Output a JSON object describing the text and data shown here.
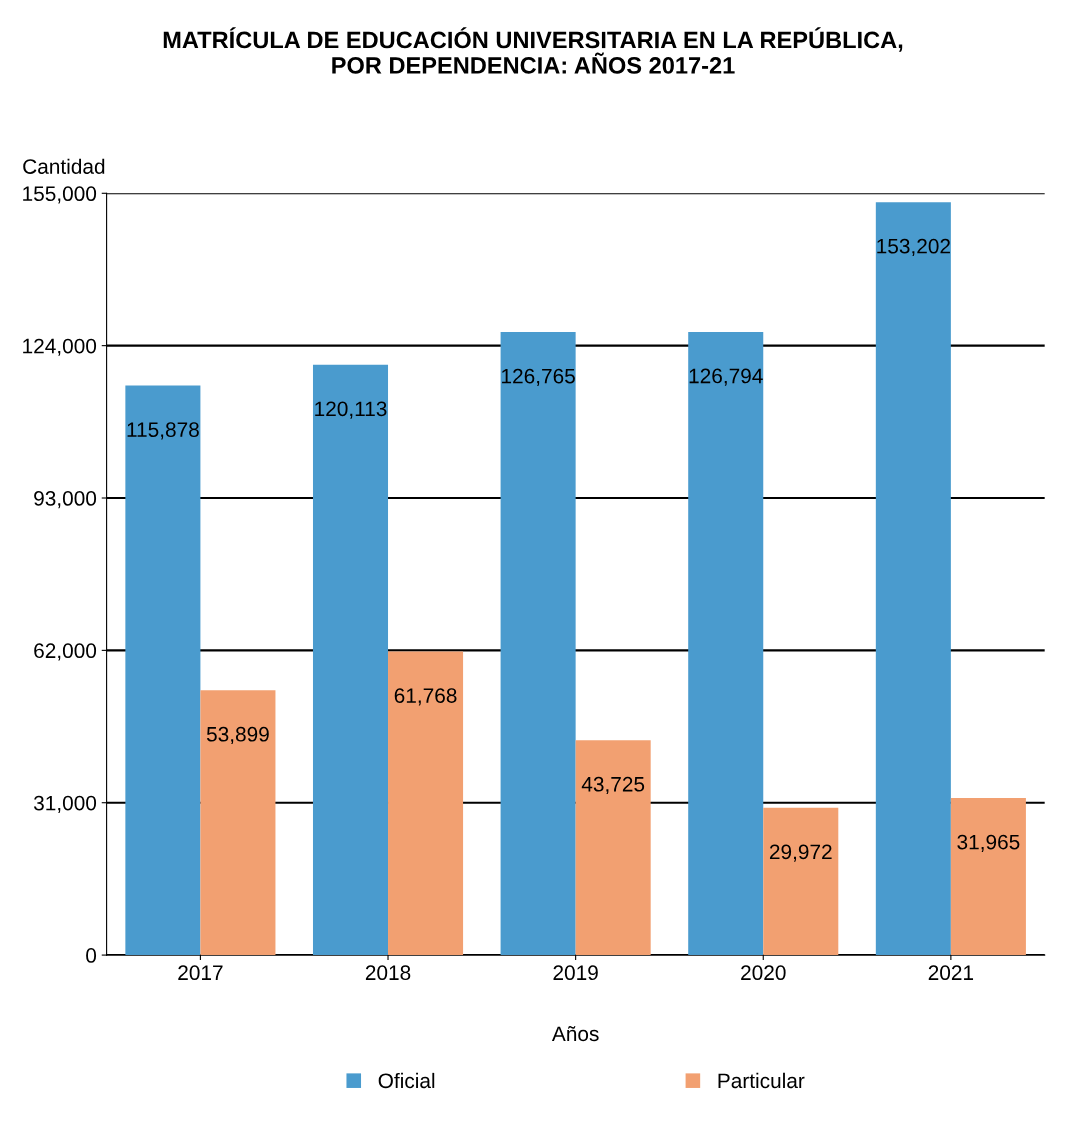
{
  "chart_data": {
    "type": "bar",
    "title": "MATRÍCULA DE EDUCACIÓN UNIVERSITARIA EN LA REPÚBLICA,\nPOR DEPENDENCIA: AÑOS 2017-21",
    "xlabel": "Años",
    "ylabel": "Cantidad",
    "categories": [
      "2017",
      "2018",
      "2019",
      "2020",
      "2021"
    ],
    "series": [
      {
        "name": "Oficial",
        "color": "#4a9bce",
        "values": [
          115878,
          120113,
          126765,
          126794,
          153202
        ],
        "value_labels": [
          "115,878",
          "120,113",
          "126,765",
          "126,794",
          "153,202"
        ]
      },
      {
        "name": "Particular",
        "color": "#f2a071",
        "values": [
          53899,
          61768,
          43725,
          29972,
          31965
        ],
        "value_labels": [
          "53,899",
          "61,768",
          "43,725",
          "29,972",
          "31,965"
        ]
      }
    ],
    "ylim": [
      0,
      155000
    ],
    "yticks": [
      {
        "value": 0,
        "label": "0"
      },
      {
        "value": 31000,
        "label": "31,000"
      },
      {
        "value": 62000,
        "label": "62,000"
      },
      {
        "value": 93000,
        "label": "93,000"
      },
      {
        "value": 124000,
        "label": "124,000"
      },
      {
        "value": 155000,
        "label": "155,000"
      }
    ],
    "grid": "y",
    "legend": "bottom"
  }
}
